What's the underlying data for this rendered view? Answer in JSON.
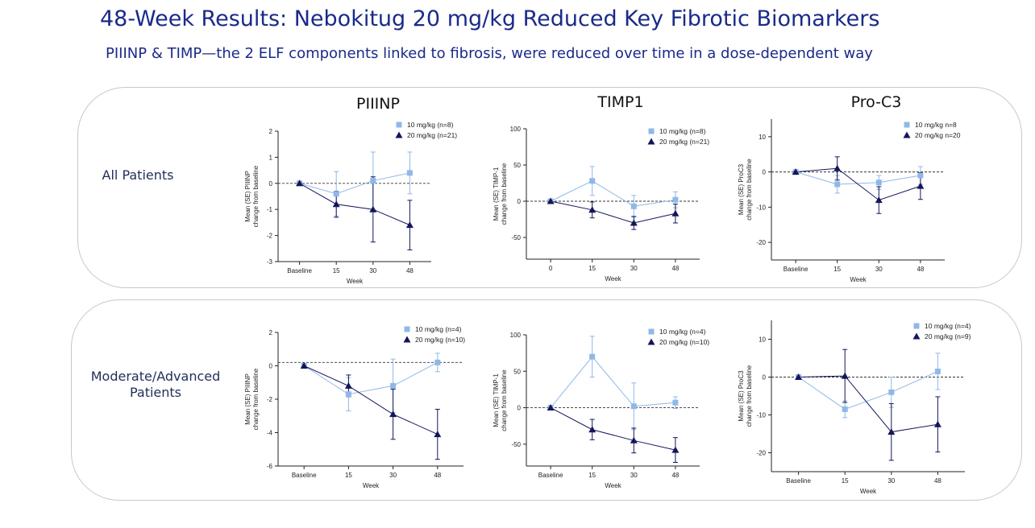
{
  "header": {
    "title": "48-Week Results: Nebokitug 20 mg/kg Reduced Key Fibrotic Biomarkers",
    "subtitle": "PIIINP & TIMP—the 2 ELF components linked to fibrosis, were reduced over time in a dose-dependent way"
  },
  "columns": [
    "PIIINP",
    "TIMP1",
    "Pro-C3"
  ],
  "rows": [
    {
      "label_line1": "All Patients",
      "label_line2": ""
    },
    {
      "label_line1": "Moderate/Advanced",
      "label_line2": "Patients"
    }
  ],
  "colors": {
    "dose10": "#8fb8e8",
    "dose20": "#14165a",
    "axis": "#222222",
    "panel_border": "#c8c8c8",
    "title": "#1a2a8a"
  },
  "chart_data": [
    {
      "type": "line",
      "id": "r0c0",
      "title": "PIIINP",
      "categories": [
        "Baseline",
        "15",
        "30",
        "48"
      ],
      "xlabel": "Week",
      "ylabel1": "Mean (SE) PIIINP",
      "ylabel2": "change from baseline",
      "ylim": [
        -3,
        2
      ],
      "yticks": [
        -3,
        -2,
        -1,
        0,
        1,
        2
      ],
      "ytick_labels": [
        "-3",
        "-2",
        "-1",
        "0",
        "1",
        "2"
      ],
      "zero_line": 0,
      "series": [
        {
          "name": "10 mg/kg (n=8)",
          "marker": "square",
          "values": [
            0,
            -0.4,
            0.1,
            0.4
          ],
          "err": [
            0,
            0.85,
            1.1,
            0.8
          ]
        },
        {
          "name": "20 mg/kg (n=21)",
          "marker": "triangle",
          "values": [
            0,
            -0.8,
            -1.0,
            -1.6
          ],
          "err": [
            0,
            0.5,
            1.25,
            0.95
          ]
        }
      ]
    },
    {
      "type": "line",
      "id": "r0c1",
      "title": "TIMP1",
      "categories": [
        "0",
        "15",
        "30",
        "48"
      ],
      "xlabel": "Week",
      "ylabel1": "Mean (SE) TIMP-1",
      "ylabel2": "change from baseline",
      "ylim": [
        -80,
        100
      ],
      "yticks": [
        -50,
        0,
        50,
        100
      ],
      "ytick_labels": [
        "-50",
        "0",
        "50",
        "100"
      ],
      "zero_line": 0,
      "series": [
        {
          "name": "10 mg/kg (n=8)",
          "marker": "square",
          "values": [
            0,
            28,
            -7,
            2
          ],
          "err": [
            0,
            20,
            15,
            11
          ]
        },
        {
          "name": "20 mg/kg (n=21)",
          "marker": "triangle",
          "values": [
            0,
            -12,
            -30,
            -17
          ],
          "err": [
            0,
            11,
            9,
            13
          ]
        }
      ]
    },
    {
      "type": "line",
      "id": "r0c2",
      "title": "Pro-C3",
      "categories": [
        "Baseline",
        "15",
        "30",
        "48"
      ],
      "xlabel": "Week",
      "ylabel1": "Mean (SE) ProC3",
      "ylabel2": "change from baseline",
      "ylim": [
        -25,
        15
      ],
      "yticks": [
        -20,
        -10,
        0,
        10
      ],
      "ytick_labels": [
        "-20",
        "-10",
        "0",
        "10"
      ],
      "zero_line": 0,
      "series": [
        {
          "name": "10 mg/kg n=8",
          "marker": "square",
          "values": [
            0,
            -3.5,
            -3,
            -1
          ],
          "err": [
            0,
            2.5,
            2,
            2.5
          ]
        },
        {
          "name": "20 mg/kg n=20",
          "marker": "triangle",
          "values": [
            0,
            1,
            -8,
            -4
          ],
          "err": [
            0,
            3.3,
            3.8,
            3.8
          ]
        }
      ]
    },
    {
      "type": "line",
      "id": "r1c0",
      "title": "PIIINP",
      "categories": [
        "Baseline",
        "15",
        "30",
        "48"
      ],
      "xlabel": "Week",
      "ylabel1": "Mean (SE) PIIINP",
      "ylabel2": "change from baseline",
      "ylim": [
        -6,
        2
      ],
      "yticks": [
        -6,
        -4,
        -2,
        0,
        2
      ],
      "ytick_labels": [
        "-6",
        "-4",
        "-2",
        "0",
        "2"
      ],
      "zero_line": 0.2,
      "series": [
        {
          "name": "10 mg/kg (n=4)",
          "marker": "square",
          "values": [
            0,
            -1.7,
            -1.2,
            0.2
          ],
          "err": [
            0,
            1.0,
            1.6,
            0.55
          ]
        },
        {
          "name": "20 mg/kg (n=10)",
          "marker": "triangle",
          "values": [
            0,
            -1.2,
            -2.9,
            -4.1
          ],
          "err": [
            0,
            0.65,
            1.5,
            1.5
          ]
        }
      ]
    },
    {
      "type": "line",
      "id": "r1c1",
      "title": "TIMP1",
      "categories": [
        "Baseline",
        "15",
        "30",
        "48"
      ],
      "xlabel": "Week",
      "ylabel1": "Mean (SE) TIMP-1",
      "ylabel2": "change from baseline",
      "ylim": [
        -80,
        100
      ],
      "yticks": [
        -50,
        0,
        50,
        100
      ],
      "ytick_labels": [
        "-50",
        "0",
        "50",
        "100"
      ],
      "zero_line": 0,
      "series": [
        {
          "name": "10 mg/kg (n=4)",
          "marker": "square",
          "values": [
            0,
            70,
            2,
            7
          ],
          "err": [
            0,
            28,
            32,
            8
          ]
        },
        {
          "name": "20 mg/kg (n=10)",
          "marker": "triangle",
          "values": [
            0,
            -30,
            -45,
            -58
          ],
          "err": [
            0,
            14,
            17,
            17
          ]
        }
      ]
    },
    {
      "type": "line",
      "id": "r1c2",
      "title": "Pro-C3",
      "categories": [
        "Baseline",
        "15",
        "30",
        "48"
      ],
      "xlabel": "Week",
      "ylabel1": "Mean (SE) ProC3",
      "ylabel2": "change from baseline",
      "ylim": [
        -25,
        15
      ],
      "yticks": [
        -20,
        -10,
        0,
        10
      ],
      "ytick_labels": [
        "-20",
        "-10",
        "0",
        "10"
      ],
      "zero_line": 0,
      "series": [
        {
          "name": "10 mg/kg (n=4)",
          "marker": "square",
          "values": [
            0,
            -8.5,
            -4,
            1.5
          ],
          "err": [
            0,
            2.2,
            4,
            4.8
          ]
        },
        {
          "name": "20 mg/kg (n=9)",
          "marker": "triangle",
          "values": [
            0,
            0.3,
            -14.5,
            -12.5
          ],
          "err": [
            0,
            7,
            7.5,
            7.3
          ]
        }
      ]
    }
  ]
}
